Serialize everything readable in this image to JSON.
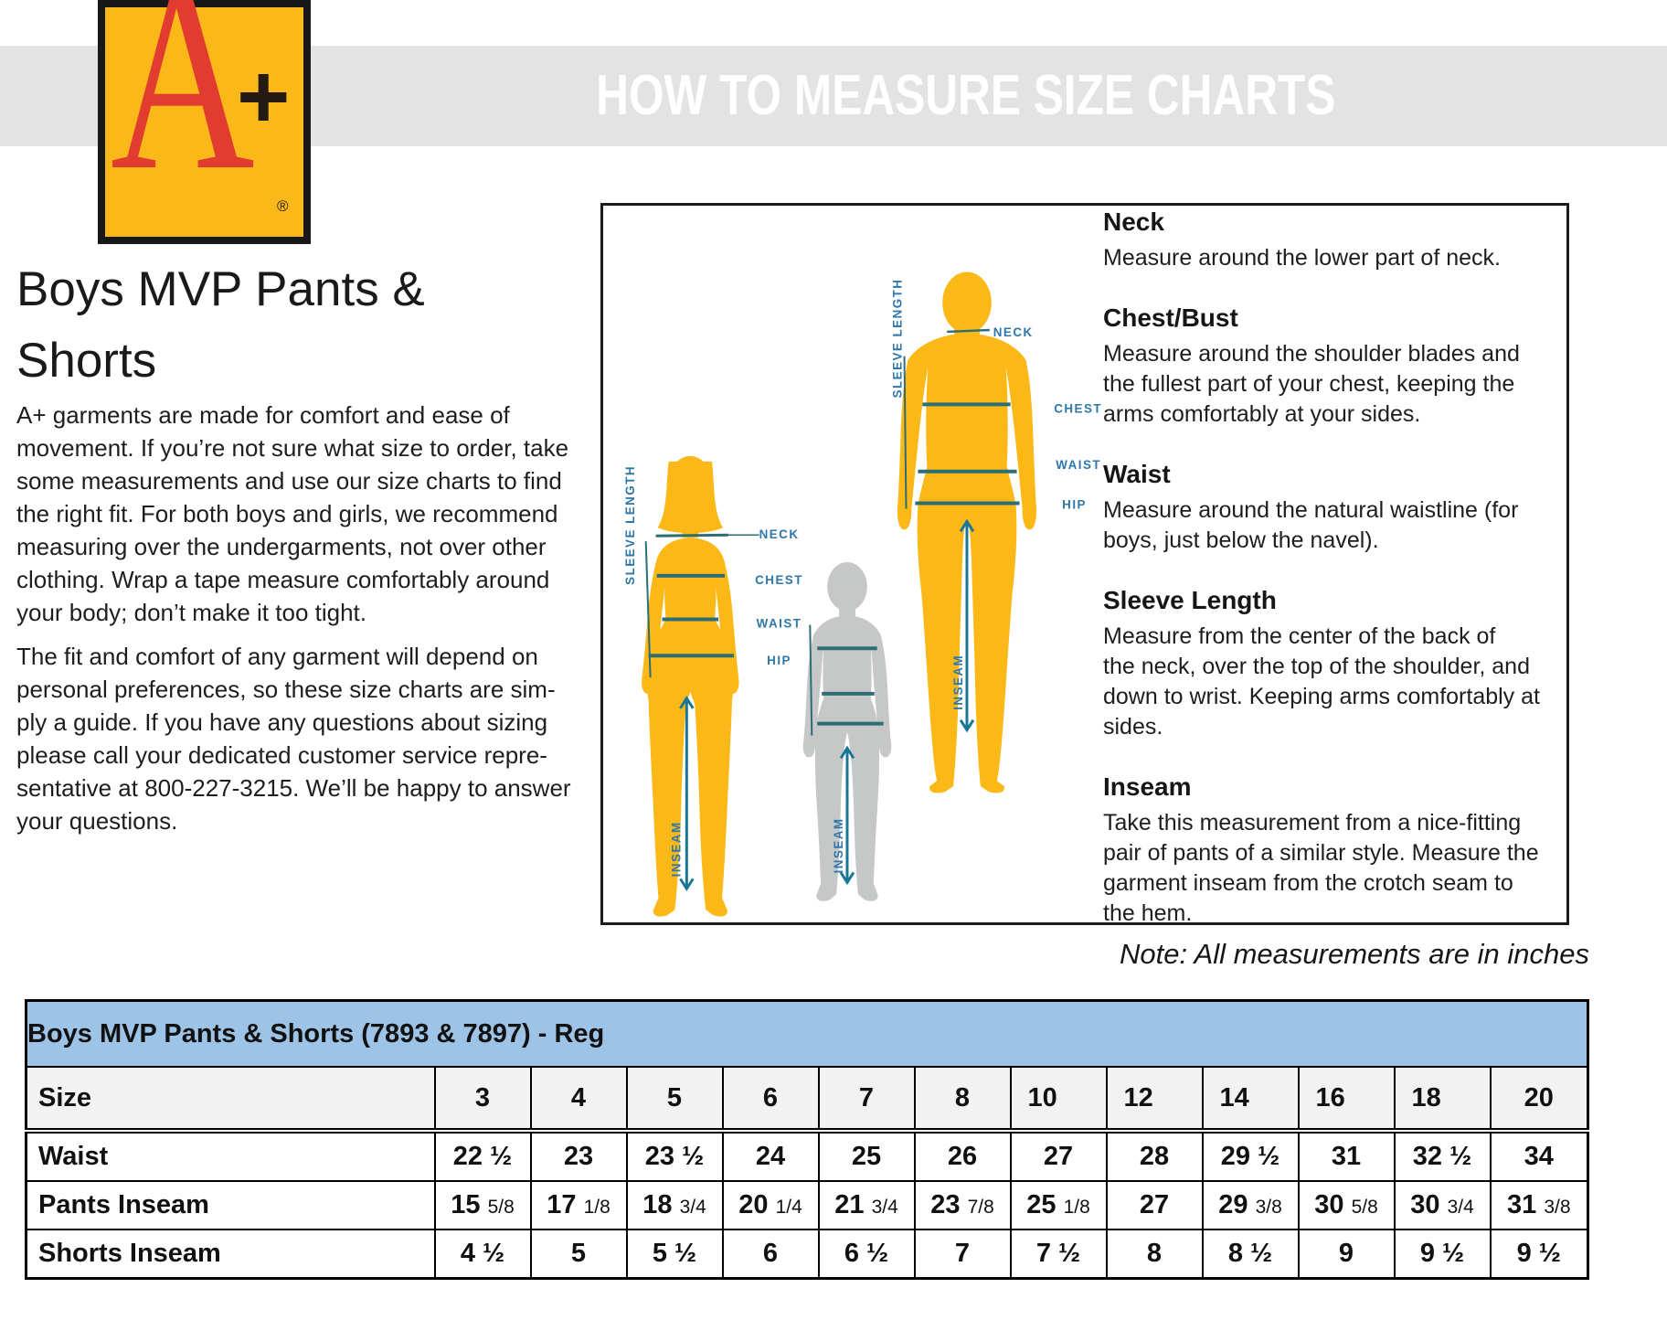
{
  "banner": {
    "title": "HOW TO MEASURE SIZE CHARTS"
  },
  "logo": {
    "letter": "A",
    "plus": "+",
    "registered": "®"
  },
  "intro": {
    "title": "Boys MVP Pants &\nShorts",
    "paragraph1": "A+ garments are made for comfort and ease of\nmovement. If you’re not sure what size to order, take\nsome measurements and use our size charts to find\nthe right fit. For both boys and girls, we recommend\nmeasuring over the undergarments, not over other\nclothing. Wrap a tape measure comfortably around\nyour body; don’t make it too tight.",
    "paragraph2": "The fit and comfort of any garment will depend on\npersonal preferences, so these size charts are sim-\nply a guide. If you have any questions about sizing\nplease call your dedicated customer service repre-\nsentative at 800-227-3215. We’ll be happy to answer\nyour questions."
  },
  "diagram": {
    "labels": {
      "neck": "NECK",
      "chest": "CHEST",
      "waist": "WAIST",
      "hip": "HIP",
      "sleeve_length": "SLEEVE LENGTH",
      "inseam": "INSEAM"
    },
    "instructions": [
      {
        "heading": "Neck",
        "body": "Measure around the lower part of neck."
      },
      {
        "heading": "Chest/Bust",
        "body": "Measure around the shoulder blades and\nthe fullest part of your chest, keeping the\narms comfortably at your sides."
      },
      {
        "heading": "Waist",
        "body": "Measure around the natural waistline (for\nboys, just below the navel)."
      },
      {
        "heading": "Sleeve Length",
        "body": "Measure from the center of the back of\nthe neck, over the top of the shoulder, and\ndown to wrist. Keeping arms comfortably at\nsides."
      },
      {
        "heading": "Inseam",
        "body": "Take this measurement from a nice-fitting\npair of pants of a similar style. Measure the\ngarment inseam from the crotch seam to\nthe hem."
      }
    ]
  },
  "note": "Note: All measurements are in inches",
  "table": {
    "title": "Boys MVP Pants & Shorts (7893 & 7897) - Reg",
    "header_label": "Size",
    "sizes": [
      "3",
      "4",
      "5",
      "6",
      "7",
      "8",
      "10",
      "12",
      "14",
      "16",
      "18",
      "20"
    ],
    "rows": [
      {
        "label": "Waist",
        "values": [
          "22 ½",
          "23",
          "23 ½",
          "24",
          "25",
          "26",
          "27",
          "28",
          "29 ½",
          "31",
          "32 ½",
          "34"
        ]
      },
      {
        "label": "Pants Inseam",
        "values": [
          "15 5/8",
          "17 1/8",
          "18 3/4",
          "20 1/4",
          "21 3/4",
          "23 7/8",
          "25 1/8",
          "27",
          "29 3/8",
          "30 5/8",
          "30 3/4",
          "31 3/8"
        ]
      },
      {
        "label": "Shorts Inseam",
        "values": [
          "4 ½",
          "5",
          "5 ½",
          "6",
          "6 ½",
          "7",
          "7 ½",
          "8",
          "8 ½",
          "9",
          "9 ½",
          "9 ½"
        ]
      }
    ]
  },
  "colors": {
    "banner_bg": "#E3E3E3",
    "banner_text": "#FFFFFF",
    "logo_yellow": "#FBB819",
    "logo_red": "#E23B30",
    "figure_gold": "#FBB817",
    "figure_gray": "#C6C7C7",
    "line_teal": "#2C6E75",
    "arrow_teal": "#1A7695",
    "label_blue": "#2E77A8",
    "table_header_blue": "#9DC3E6",
    "table_size_row_gray": "#F2F2F2"
  }
}
